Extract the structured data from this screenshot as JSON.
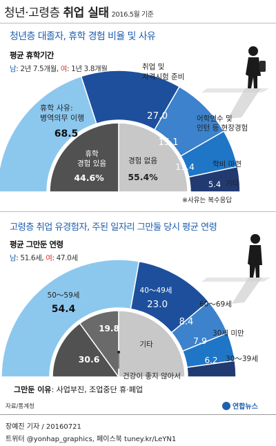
{
  "header": {
    "title_part1": "청년·고령층 ",
    "title_bold": "취업 실태",
    "date": "2016.5월 기준"
  },
  "youth": {
    "title": "청년층 대졸자, 휴학 경험 비율 및 사유",
    "avg_label": "평균 휴학기간",
    "male_label": "남",
    "male_value": ": 2년 7.5개월,",
    "female_label": "여",
    "female_value": ": 1년 3.8개월",
    "note": "※사유는 복수응답",
    "inner_labels": [
      "휴학\n경험 있음",
      "경험 없음"
    ]
  },
  "elderly": {
    "title": "고령층 취업 유경험자, 주된 일자리 그만둘 당시 평균 연령",
    "avg_label": "평균 그만둔 연령",
    "male_label": "남",
    "male_value": ": 51.6세,",
    "female_label": "여",
    "female_value": ": 47.0세",
    "reason_label": "그만둔 이유",
    "reason_value": ": 사업부진, 조업중단 휴·폐업"
  },
  "footer": {
    "source": "자료/통계청",
    "reporter": "장예진 기자 / 20160721",
    "social": "트위터 @yonhap_graphics, 페이스북 tuney.kr/LeYN1",
    "logo": "연합뉴스"
  },
  "colors": {
    "light": "#8cc8ee",
    "navy": "#1d4f9c",
    "mid": "#3c82cc",
    "blue": "#1f76c6",
    "dark": "#223a72",
    "gray_dark": "#515151",
    "gray_light": "#c8c8c8",
    "red": "#e0342a"
  },
  "chart_data": [
    {
      "type": "pie",
      "title": "청년층 대졸자, 휴학 경험 비율 및 사유",
      "outer_ring": {
        "series": [
          {
            "name": "휴학 사유:\n병역의무 이행",
            "value": 68.5
          },
          {
            "name": "취업 및\n자격시험 준비",
            "value": 27.0
          },
          {
            "name": "어학연수 및\n인턴 등 현장경험",
            "value": 15.1
          },
          {
            "name": "학비 마련",
            "value": 11.4
          },
          {
            "name": "기타",
            "value": 5.4
          }
        ]
      },
      "inner_pie": {
        "series": [
          {
            "name": "휴학\n경험 있음",
            "value": 44.6
          },
          {
            "name": "경험 없음",
            "value": 55.4
          }
        ],
        "unit": "%"
      }
    },
    {
      "type": "pie",
      "title": "고령층 취업 유경험자, 주된 일자리 그만둘 당시 평균 연령",
      "outer_ring": {
        "series": [
          {
            "name": "50～59세",
            "value": 54.4
          },
          {
            "name": "40～49세",
            "value": 23.0
          },
          {
            "name": "60～69세",
            "value": 8.4
          },
          {
            "name": "30세 미만",
            "value": 7.9
          },
          {
            "name": "30～39세",
            "value": 6.2
          }
        ]
      },
      "inner_pie": {
        "series": [
          {
            "name": "",
            "value": 30.6
          },
          {
            "name": "",
            "value": 19.8
          },
          {
            "name": "기타",
            "value": null
          }
        ],
        "annotation": "건강이 좋지 않아서"
      }
    }
  ]
}
